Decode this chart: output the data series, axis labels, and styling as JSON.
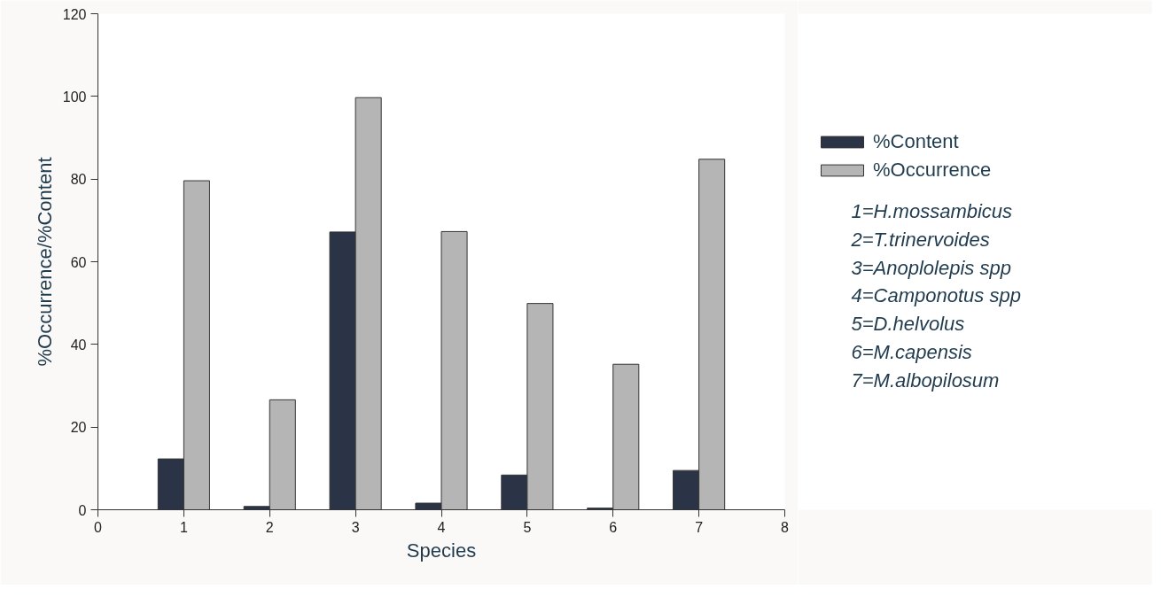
{
  "chart_data": {
    "type": "bar",
    "xlabel": "Species",
    "ylabel": "%Occurrence/%Content",
    "x": [
      1,
      2,
      3,
      4,
      5,
      6,
      7
    ],
    "series": [
      {
        "name": "%Content",
        "color": "#2b3446",
        "values": [
          12.3,
          0.8,
          67.2,
          1.6,
          8.4,
          0.4,
          9.5
        ]
      },
      {
        "name": "%Occurrence",
        "color": "#b5b5b5",
        "values": [
          79.6,
          26.6,
          99.7,
          67.3,
          49.9,
          35.2,
          84.8
        ]
      }
    ],
    "xlim": [
      0,
      8
    ],
    "xticks": [
      0,
      1,
      2,
      3,
      4,
      5,
      6,
      7,
      8
    ],
    "ylim": [
      0,
      120
    ],
    "yticks": [
      0,
      20,
      40,
      60,
      80,
      100,
      120
    ],
    "grid": false,
    "legend": "right",
    "annotations": [
      "1=H.mossambicus",
      "2=T.trinervoides",
      "3=Anoplolepis spp",
      "4=Camponotus spp",
      "5=D.helvolus",
      "6=M.capensis",
      "7=M.albopilosum"
    ]
  }
}
